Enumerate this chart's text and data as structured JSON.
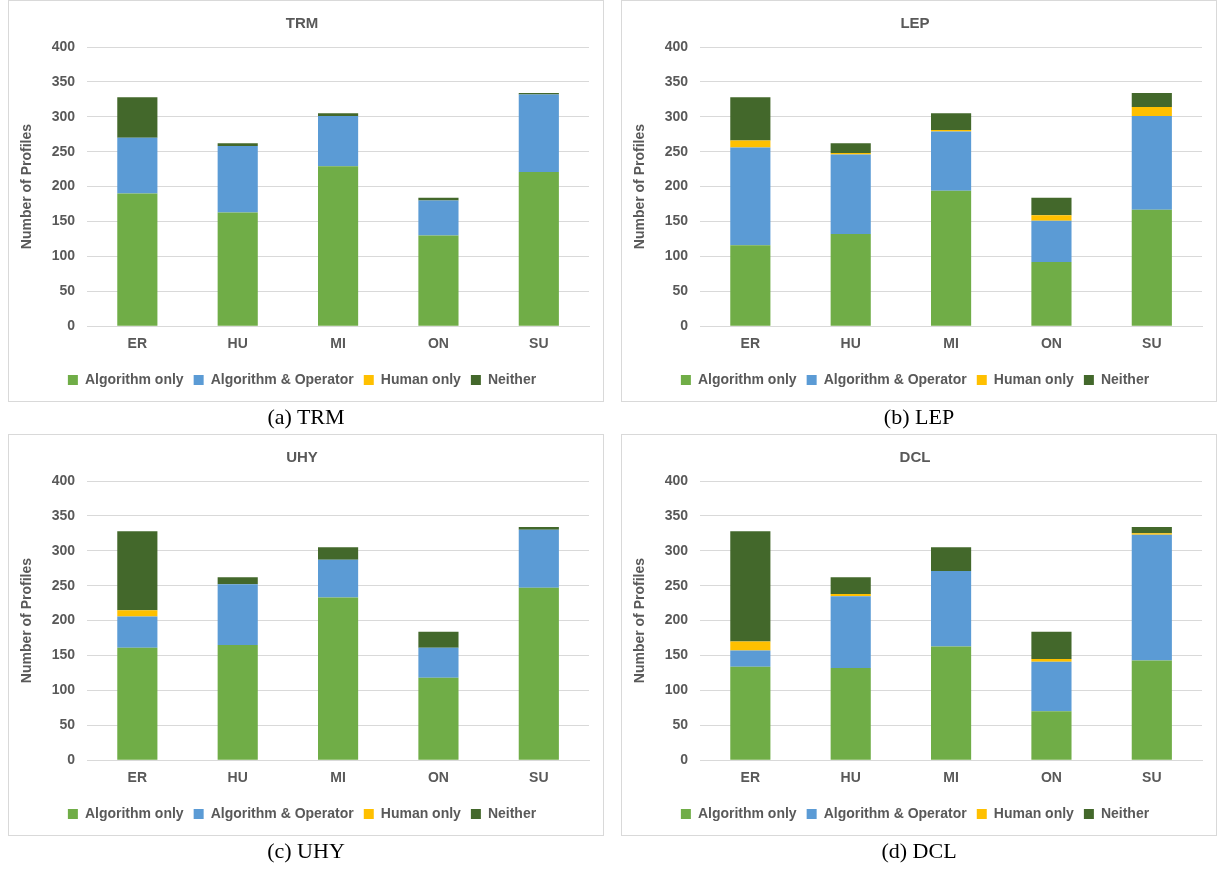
{
  "chart_data": [
    {
      "type": "bar",
      "title": "TRM",
      "ylabel": "Number of Profiles",
      "categories": [
        "ER",
        "HU",
        "MI",
        "ON",
        "SU"
      ],
      "stacked": true,
      "ylim": [
        0,
        400
      ],
      "yticks": [
        0,
        50,
        100,
        150,
        200,
        250,
        300,
        350,
        400
      ],
      "grid": "y",
      "legend": "bottom",
      "annotations": [
        "(a) TRM"
      ],
      "series": [
        {
          "name": "Algorithm only",
          "color": "#70ad47",
          "values": [
            190,
            163,
            229,
            130,
            221
          ]
        },
        {
          "name": "Algorithm & Operator",
          "color": "#5b9bd5",
          "values": [
            80,
            95,
            72,
            50,
            111
          ]
        },
        {
          "name": "Human only",
          "color": "#ffc000",
          "values": [
            0,
            0,
            0,
            0,
            0
          ]
        },
        {
          "name": "Neither",
          "color": "#43682b",
          "values": [
            58,
            4,
            4,
            4,
            2
          ]
        }
      ]
    },
    {
      "type": "bar",
      "title": "LEP",
      "ylabel": "Number of Profiles",
      "categories": [
        "ER",
        "HU",
        "MI",
        "ON",
        "SU"
      ],
      "stacked": true,
      "ylim": [
        0,
        400
      ],
      "yticks": [
        0,
        50,
        100,
        150,
        200,
        250,
        300,
        350,
        400
      ],
      "grid": "y",
      "legend": "bottom",
      "annotations": [
        "(b) LEP"
      ],
      "series": [
        {
          "name": "Algorithm only",
          "color": "#70ad47",
          "values": [
            116,
            132,
            194,
            92,
            167
          ]
        },
        {
          "name": "Algorithm & Operator",
          "color": "#5b9bd5",
          "values": [
            140,
            114,
            85,
            59,
            134
          ]
        },
        {
          "name": "Human only",
          "color": "#ffc000",
          "values": [
            10,
            2,
            2,
            8,
            13
          ]
        },
        {
          "name": "Neither",
          "color": "#43682b",
          "values": [
            62,
            14,
            24,
            25,
            20
          ]
        }
      ]
    },
    {
      "type": "bar",
      "title": "UHY",
      "ylabel": "Number of Profiles",
      "categories": [
        "ER",
        "HU",
        "MI",
        "ON",
        "SU"
      ],
      "stacked": true,
      "ylim": [
        0,
        400
      ],
      "yticks": [
        0,
        50,
        100,
        150,
        200,
        250,
        300,
        350,
        400
      ],
      "grid": "y",
      "legend": "bottom",
      "annotations": [
        "(c) UHY"
      ],
      "series": [
        {
          "name": "Algorithm only",
          "color": "#70ad47",
          "values": [
            161,
            165,
            233,
            118,
            247
          ]
        },
        {
          "name": "Algorithm & Operator",
          "color": "#5b9bd5",
          "values": [
            45,
            87,
            54,
            43,
            83
          ]
        },
        {
          "name": "Human only",
          "color": "#ffc000",
          "values": [
            9,
            0,
            0,
            0,
            0
          ]
        },
        {
          "name": "Neither",
          "color": "#43682b",
          "values": [
            113,
            10,
            18,
            23,
            4
          ]
        }
      ]
    },
    {
      "type": "bar",
      "title": "DCL",
      "ylabel": "Number of Profiles",
      "categories": [
        "ER",
        "HU",
        "MI",
        "ON",
        "SU"
      ],
      "stacked": true,
      "ylim": [
        0,
        400
      ],
      "yticks": [
        0,
        50,
        100,
        150,
        200,
        250,
        300,
        350,
        400
      ],
      "grid": "y",
      "legend": "bottom",
      "annotations": [
        "(d) DCL"
      ],
      "series": [
        {
          "name": "Algorithm only",
          "color": "#70ad47",
          "values": [
            134,
            132,
            163,
            70,
            143
          ]
        },
        {
          "name": "Algorithm & Operator",
          "color": "#5b9bd5",
          "values": [
            23,
            103,
            108,
            71,
            180
          ]
        },
        {
          "name": "Human only",
          "color": "#ffc000",
          "values": [
            13,
            3,
            0,
            4,
            2
          ]
        },
        {
          "name": "Neither",
          "color": "#43682b",
          "values": [
            158,
            24,
            34,
            39,
            9
          ]
        }
      ]
    }
  ]
}
